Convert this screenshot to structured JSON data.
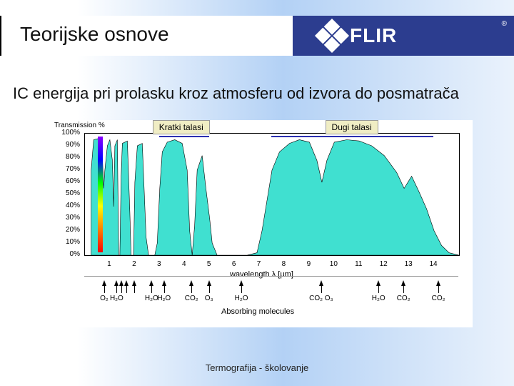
{
  "header": {
    "title": "Teorijske osnove",
    "logo_text": "FLIR"
  },
  "subtitle": "IC energija pri prolasku kroz atmosferu od izvora do posmatrača",
  "footer": "Termografija - školovanje",
  "chart": {
    "type": "area",
    "y_axis_title": "Transmission %",
    "x_axis_title": "wavelength λ [μm]",
    "molecules_title": "Absorbing molecules",
    "ylim": [
      0,
      100
    ],
    "ytick_step": 10,
    "xlim": [
      0,
      15
    ],
    "xtick_step": 1,
    "yticks": [
      "0%",
      "10%",
      "20%",
      "30%",
      "40%",
      "50%",
      "60%",
      "70%",
      "80%",
      "90%",
      "100%"
    ],
    "xticks": [
      "1",
      "2",
      "3",
      "4",
      "5",
      "6",
      "7",
      "8",
      "9",
      "10",
      "11",
      "12",
      "13",
      "14"
    ],
    "fill_color": "#40e0d0",
    "stroke_color": "#000000",
    "background_color": "#ffffff",
    "grid_color": "#000000",
    "band_labels": {
      "short_wave": {
        "text": "Kratki talasi",
        "x_range": [
          3.0,
          5.0
        ]
      },
      "long_wave": {
        "text": "Dugi talasi",
        "x_range": [
          7.5,
          14.0
        ]
      }
    },
    "band_label_bg": "#f0edc4",
    "visible_strip": {
      "x": 0.6,
      "colors": [
        "#8b00ff",
        "#0000ff",
        "#00ff00",
        "#ffff00",
        "#ff7f00",
        "#ff0000"
      ]
    },
    "molecules": [
      {
        "x": 0.8,
        "label": "O₂"
      },
      {
        "x": 1.3,
        "label": "H₂O"
      },
      {
        "x": 1.5,
        "label": ""
      },
      {
        "x": 1.7,
        "label": ""
      },
      {
        "x": 2.0,
        "label": ""
      },
      {
        "x": 2.7,
        "label": "H₂O"
      },
      {
        "x": 3.2,
        "label": "H₂O"
      },
      {
        "x": 4.3,
        "label": "CO₂"
      },
      {
        "x": 5.0,
        "label": "O₃"
      },
      {
        "x": 6.3,
        "label": "H₂O"
      },
      {
        "x": 9.5,
        "label": "CO₂  O₃"
      },
      {
        "x": 11.8,
        "label": "H₂O"
      },
      {
        "x": 12.8,
        "label": "CO₂"
      },
      {
        "x": 14.2,
        "label": "CO₂"
      }
    ],
    "series": [
      [
        0.25,
        70
      ],
      [
        0.35,
        95
      ],
      [
        0.55,
        96
      ],
      [
        0.7,
        80
      ],
      [
        0.75,
        55
      ],
      [
        0.8,
        70
      ],
      [
        0.9,
        90
      ],
      [
        1.0,
        95
      ],
      [
        1.1,
        78
      ],
      [
        1.15,
        40
      ],
      [
        1.2,
        90
      ],
      [
        1.3,
        95
      ],
      [
        1.35,
        0
      ],
      [
        1.4,
        0
      ],
      [
        1.45,
        65
      ],
      [
        1.5,
        92
      ],
      [
        1.7,
        94
      ],
      [
        1.8,
        35
      ],
      [
        1.85,
        0
      ],
      [
        1.95,
        0
      ],
      [
        2.0,
        60
      ],
      [
        2.1,
        90
      ],
      [
        2.3,
        92
      ],
      [
        2.45,
        15
      ],
      [
        2.55,
        0
      ],
      [
        2.8,
        0
      ],
      [
        2.9,
        10
      ],
      [
        3.0,
        55
      ],
      [
        3.1,
        85
      ],
      [
        3.3,
        93
      ],
      [
        3.6,
        95
      ],
      [
        3.9,
        92
      ],
      [
        4.1,
        70
      ],
      [
        4.2,
        20
      ],
      [
        4.3,
        0
      ],
      [
        4.4,
        25
      ],
      [
        4.5,
        70
      ],
      [
        4.7,
        82
      ],
      [
        4.85,
        55
      ],
      [
        5.0,
        30
      ],
      [
        5.1,
        10
      ],
      [
        5.3,
        0
      ],
      [
        5.6,
        0
      ],
      [
        6.0,
        0
      ],
      [
        6.5,
        0
      ],
      [
        6.9,
        2
      ],
      [
        7.1,
        20
      ],
      [
        7.3,
        45
      ],
      [
        7.5,
        70
      ],
      [
        7.8,
        85
      ],
      [
        8.2,
        92
      ],
      [
        8.6,
        95
      ],
      [
        9.0,
        93
      ],
      [
        9.3,
        78
      ],
      [
        9.5,
        60
      ],
      [
        9.7,
        78
      ],
      [
        10.0,
        93
      ],
      [
        10.5,
        95
      ],
      [
        11.0,
        94
      ],
      [
        11.5,
        90
      ],
      [
        12.0,
        82
      ],
      [
        12.5,
        68
      ],
      [
        12.8,
        55
      ],
      [
        13.1,
        65
      ],
      [
        13.4,
        52
      ],
      [
        13.7,
        38
      ],
      [
        14.0,
        20
      ],
      [
        14.3,
        8
      ],
      [
        14.6,
        2
      ],
      [
        15.0,
        0
      ]
    ]
  }
}
